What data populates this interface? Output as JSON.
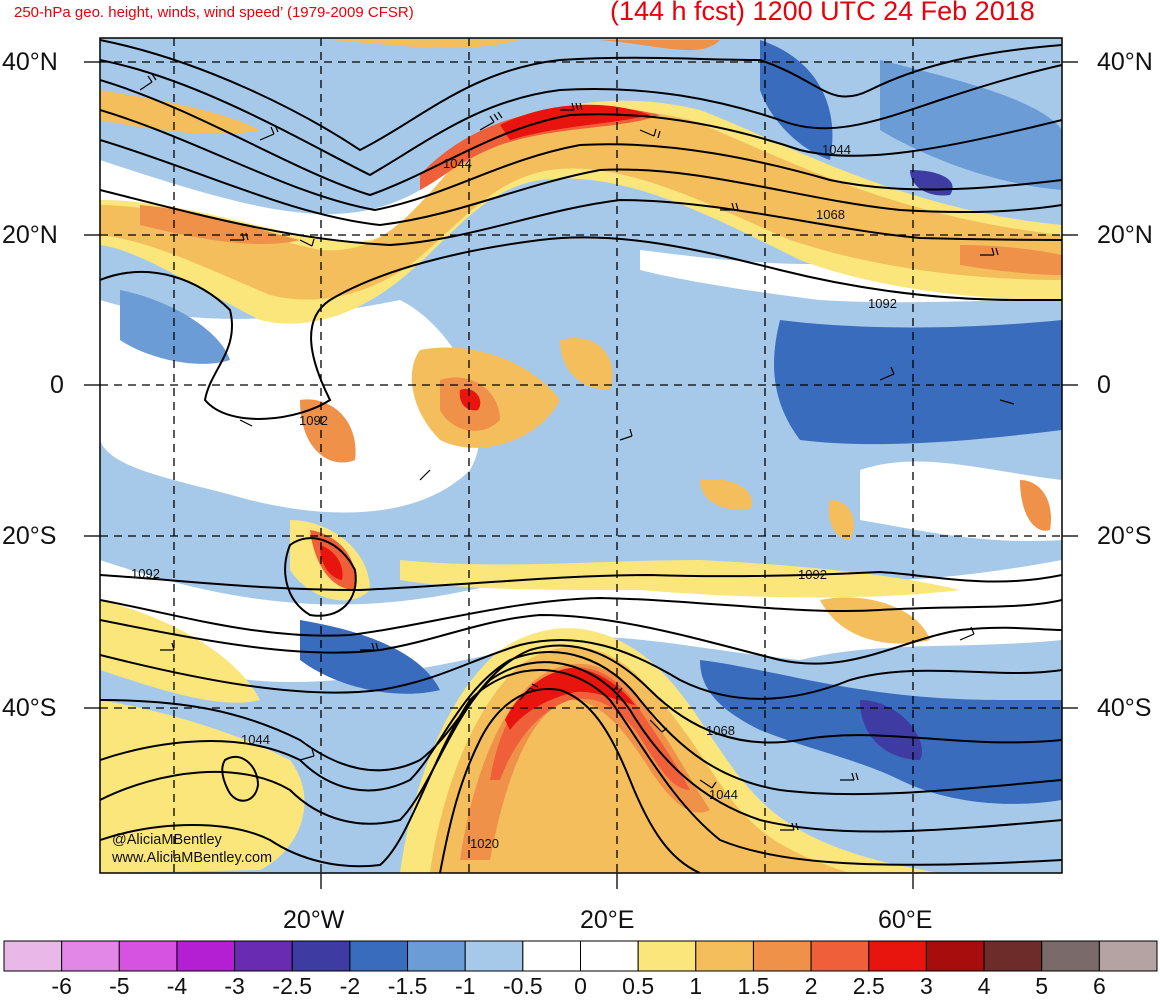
{
  "header": {
    "title_left": "250-hPa geo. height, winds, wind speed’ (1979-2009 CFSR)",
    "title_right": "(144 h fcst) 1200 UTC 24 Feb 2018"
  },
  "axes": {
    "lat_labels": [
      "40°N",
      "20°N",
      "0",
      "20°S",
      "40°S"
    ],
    "lon_labels": [
      "20°W",
      "20°E",
      "60°E"
    ]
  },
  "contour_labels": [
    "1044",
    "1044",
    "1068",
    "1092",
    "1092",
    "1092",
    "1092",
    "1068",
    "1044",
    "1044",
    "1020"
  ],
  "credit": {
    "line1": "@AliciaMBentley",
    "line2": "www.AliciaMBentley.com"
  },
  "colorbar": {
    "labels": [
      "-6",
      "-5",
      "-4",
      "-3",
      "-2.5",
      "-2",
      "-1.5",
      "-1",
      "-0.5",
      "0",
      "0.5",
      "1",
      "1.5",
      "2",
      "2.5",
      "3",
      "4",
      "5",
      "6"
    ],
    "colors": [
      "#e9b8e9",
      "#e286e8",
      "#d652e0",
      "#b41fd4",
      "#6a2bb3",
      "#3e3ca3",
      "#3a6cbd",
      "#6b9cd6",
      "#a6c9ea",
      "#ffffff",
      "#ffffff",
      "#fbe67c",
      "#f4be5c",
      "#f0914a",
      "#ee5f3a",
      "#e8140e",
      "#a80d0d",
      "#6d2b29",
      "#7a6b6a",
      "#b5a3a3"
    ]
  }
}
